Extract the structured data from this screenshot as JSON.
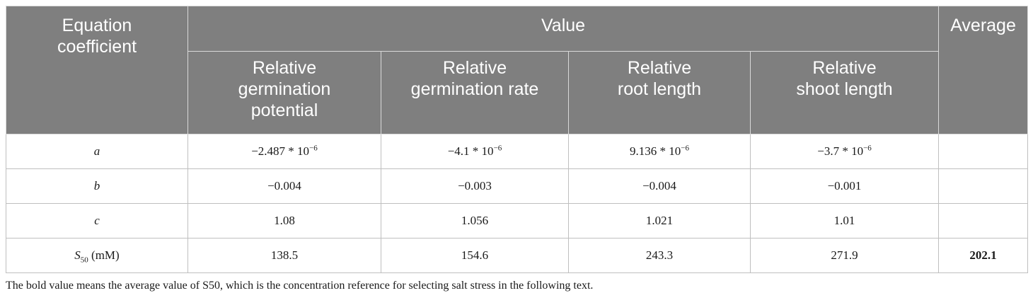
{
  "header": {
    "coef_label_1": "Equation",
    "coef_label_2": "coefficient",
    "value_label": "Value",
    "average_label": "Average",
    "sub": [
      {
        "l1": "Relative",
        "l2": "germination",
        "l3": "potential"
      },
      {
        "l1": "Relative",
        "l2": "germination rate",
        "l3": ""
      },
      {
        "l1": "Relative",
        "l2": "root length",
        "l3": ""
      },
      {
        "l1": "Relative",
        "l2": "shoot length",
        "l3": ""
      }
    ]
  },
  "rows": [
    {
      "label": "a",
      "label_sub": "",
      "label_suffix": "",
      "cells": [
        {
          "base": "−2.487 * 10",
          "exp": "−6"
        },
        {
          "base": "−4.1 * 10",
          "exp": "−6"
        },
        {
          "base": "9.136 * 10",
          "exp": "−6"
        },
        {
          "base": "−3.7 * 10",
          "exp": "−6"
        }
      ],
      "average": ""
    },
    {
      "label": "b",
      "label_sub": "",
      "label_suffix": "",
      "cells": [
        {
          "base": "−0.004",
          "exp": ""
        },
        {
          "base": "−0.003",
          "exp": ""
        },
        {
          "base": "−0.004",
          "exp": ""
        },
        {
          "base": "−0.001",
          "exp": ""
        }
      ],
      "average": ""
    },
    {
      "label": "c",
      "label_sub": "",
      "label_suffix": "",
      "cells": [
        {
          "base": "1.08",
          "exp": ""
        },
        {
          "base": "1.056",
          "exp": ""
        },
        {
          "base": "1.021",
          "exp": ""
        },
        {
          "base": "1.01",
          "exp": ""
        }
      ],
      "average": ""
    },
    {
      "label": "S",
      "label_sub": "50",
      "label_suffix": " (mM)",
      "cells": [
        {
          "base": "138.5",
          "exp": ""
        },
        {
          "base": "154.6",
          "exp": ""
        },
        {
          "base": "243.3",
          "exp": ""
        },
        {
          "base": "271.9",
          "exp": ""
        }
      ],
      "average": "202.1"
    }
  ],
  "footnote": "The bold value means the average value of S50, which is the concentration reference for selecting salt stress in the following text."
}
